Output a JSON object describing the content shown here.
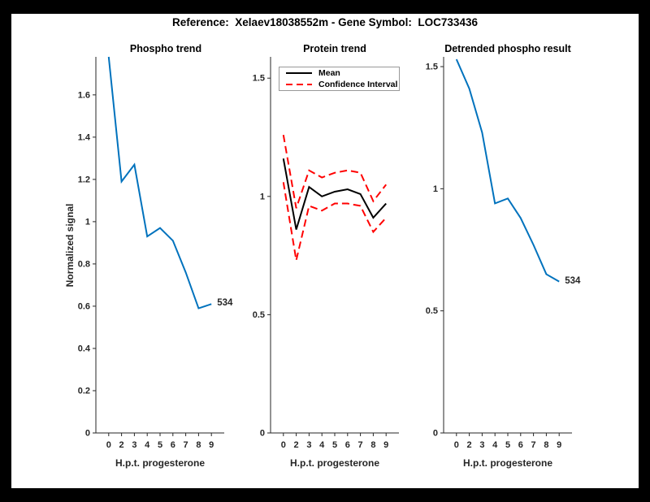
{
  "window": {
    "title": "Reference:  Xelaev18038552m - Gene Symbol:  LOC733436"
  },
  "colors": {
    "blue": "#0072BD",
    "red": "#FF0000",
    "black": "#000000",
    "axis": "#262626",
    "figure_bg": "#ffffff",
    "frame_bg": "#000000"
  },
  "chart_data": [
    {
      "type": "line",
      "title": "Phospho trend",
      "xlabel": "H.p.t. progesterone",
      "ylabel": "Normalized signal",
      "x_tick_labels": [
        "0",
        "2",
        "3",
        "4",
        "5",
        "6",
        "7",
        "8",
        "9"
      ],
      "ylim": [
        0,
        1.78
      ],
      "yticks": {
        "values": [
          0,
          0.2,
          0.4,
          0.6,
          0.8,
          1,
          1.2,
          1.4,
          1.6
        ],
        "labels": [
          "0",
          "0.2",
          "0.4",
          "0.6",
          "0.8",
          "1",
          "1.2",
          "1.4",
          "1.6"
        ]
      },
      "grid": false,
      "series": [
        {
          "name": "Phospho signal",
          "color": "blue",
          "style": "solid",
          "values": [
            1.78,
            1.19,
            1.27,
            0.93,
            0.97,
            0.91,
            0.76,
            0.59,
            0.61
          ]
        }
      ],
      "end_label": "534"
    },
    {
      "type": "line",
      "title": "Protein trend",
      "xlabel": "H.p.t. progesterone",
      "ylabel": "",
      "x_tick_labels": [
        "0",
        "2",
        "3",
        "4",
        "5",
        "6",
        "7",
        "8",
        "9"
      ],
      "ylim": [
        0,
        1.59
      ],
      "yticks": {
        "values": [
          0,
          0.5,
          1,
          1.5
        ],
        "labels": [
          "0",
          "0.5",
          "1",
          "1.5"
        ]
      },
      "grid": false,
      "legend": [
        "Mean",
        "Confidence Interval"
      ],
      "legend_position": "top-right-inside",
      "series": [
        {
          "name": "Mean",
          "color": "black",
          "style": "solid",
          "values": [
            1.16,
            0.86,
            1.04,
            1.0,
            1.02,
            1.03,
            1.01,
            0.91,
            0.97
          ]
        },
        {
          "name": "Confidence Interval upper",
          "color": "red",
          "style": "dashed",
          "values": [
            1.26,
            0.95,
            1.11,
            1.08,
            1.1,
            1.11,
            1.1,
            0.98,
            1.05
          ]
        },
        {
          "name": "Confidence Interval lower",
          "color": "red",
          "style": "dashed",
          "values": [
            1.06,
            0.73,
            0.96,
            0.94,
            0.97,
            0.97,
            0.96,
            0.85,
            0.91
          ]
        }
      ]
    },
    {
      "type": "line",
      "title": "Detrended phospho result",
      "xlabel": "H.p.t. progesterone",
      "ylabel": "",
      "x_tick_labels": [
        "0",
        "2",
        "3",
        "4",
        "5",
        "6",
        "7",
        "8",
        "9"
      ],
      "ylim": [
        0,
        1.54
      ],
      "yticks": {
        "values": [
          0,
          0.5,
          1,
          1.5
        ],
        "labels": [
          "0",
          "0.5",
          "1",
          "1.5"
        ]
      },
      "grid": false,
      "series": [
        {
          "name": "Detrended phospho signal",
          "color": "blue",
          "style": "solid",
          "values": [
            1.53,
            1.41,
            1.23,
            0.94,
            0.96,
            0.88,
            0.77,
            0.65,
            0.62
          ]
        }
      ],
      "end_label": "534"
    }
  ]
}
